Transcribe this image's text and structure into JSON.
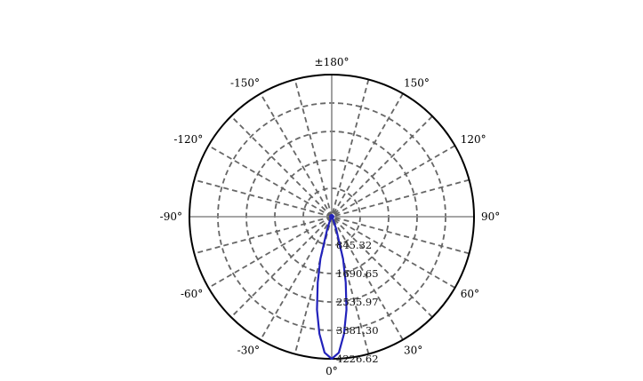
{
  "chart_data": {
    "type": "polar-line",
    "angle_labels": [
      {
        "angle": 0,
        "text": "0°"
      },
      {
        "angle": 30,
        "text": "30°"
      },
      {
        "angle": 60,
        "text": "60°"
      },
      {
        "angle": 90,
        "text": "90°"
      },
      {
        "angle": 120,
        "text": "120°"
      },
      {
        "angle": 150,
        "text": "150°"
      },
      {
        "angle": 180,
        "text": "±180°"
      },
      {
        "angle": -150,
        "text": "-150°"
      },
      {
        "angle": -120,
        "text": "-120°"
      },
      {
        "angle": -90,
        "text": "-90°"
      },
      {
        "angle": -60,
        "text": "-60°"
      },
      {
        "angle": -30,
        "text": "-30°"
      }
    ],
    "radial_ticks": [
      {
        "value": 845.32,
        "text": "845.32"
      },
      {
        "value": 1690.65,
        "text": "1690.65"
      },
      {
        "value": 2535.97,
        "text": "2535.97"
      },
      {
        "value": 3381.3,
        "text": "3381.30"
      },
      {
        "value": 4226.62,
        "text": "4226.62"
      }
    ],
    "rmax": 4226.62,
    "angle_grid_step_deg": 15,
    "grid": true,
    "series": [
      {
        "color": "#2222bb",
        "theta": [
          -90,
          -60,
          -40,
          -30,
          -25,
          -20,
          -15,
          -12,
          -9,
          -6,
          -3,
          0,
          3,
          6,
          9,
          12,
          15,
          20,
          25,
          30,
          40,
          60,
          90
        ],
        "r": [
          0,
          0,
          8,
          40,
          110,
          380,
          1300,
          2000,
          2800,
          3500,
          4050,
          4226.62,
          4050,
          3500,
          2800,
          2000,
          1300,
          380,
          110,
          40,
          8,
          0,
          0
        ]
      }
    ]
  }
}
